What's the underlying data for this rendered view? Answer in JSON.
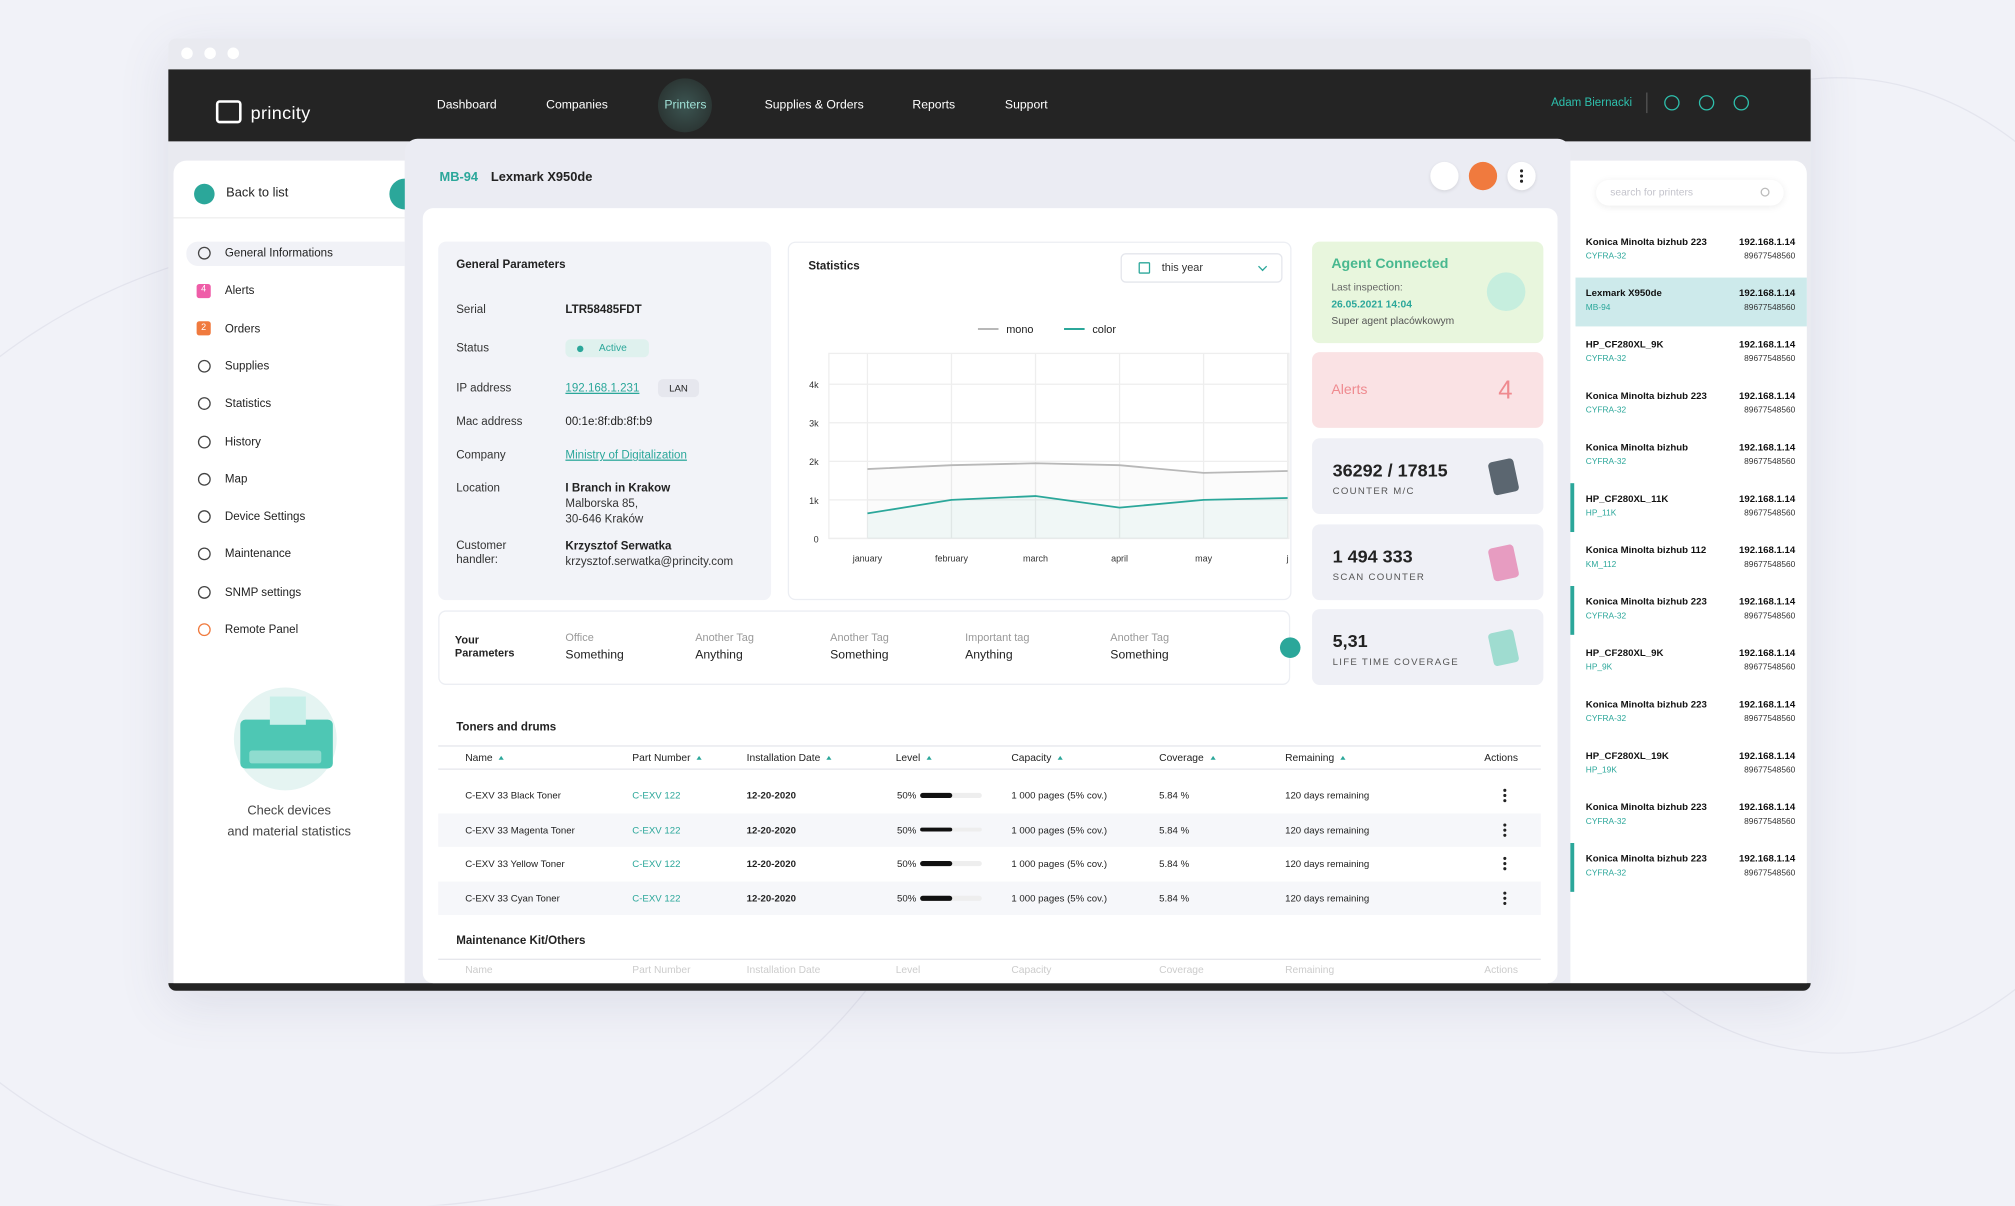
{
  "browser": {
    "brand": "princity",
    "nav": [
      "Dashboard",
      "Companies",
      "Printers",
      "Supplies & Orders",
      "Reports",
      "Support"
    ],
    "user": "Adam Biernacki"
  },
  "sidebar": {
    "back": "Back to list",
    "menu": [
      {
        "label": "General Informations"
      },
      {
        "label": "Alerts",
        "badge": "4"
      },
      {
        "label": "Orders",
        "badge": "2"
      },
      {
        "label": "Supplies"
      },
      {
        "label": "Statistics"
      },
      {
        "label": "History"
      },
      {
        "label": "Map"
      },
      {
        "label": "Device Settings"
      },
      {
        "label": "Maintenance"
      },
      {
        "label": "SNMP settings"
      },
      {
        "label": "Remote Panel"
      }
    ],
    "promo": [
      "Check devices",
      "and material statistics"
    ]
  },
  "device": {
    "id": "MB-94",
    "name": "Lexmark X950de"
  },
  "general_parameters": {
    "title": "General Parameters",
    "rows": [
      {
        "label": "Serial",
        "lines": [
          "LTR58485FDT"
        ]
      },
      {
        "label": "Status",
        "lines": [
          "Active"
        ]
      },
      {
        "label": "IP address",
        "lines": [
          "192.168.1.231"
        ],
        "tag": "LAN"
      },
      {
        "label": "Mac address",
        "lines": [
          "00:1e:8f:db:8f:b9"
        ]
      },
      {
        "label": "Company",
        "lines": [
          "Ministry of Digitalization"
        ]
      },
      {
        "label": "Location",
        "lines": [
          "I Branch in Krakow",
          "Malborska 85,",
          "30-646 Kraków"
        ]
      },
      {
        "label": "Customer handler:",
        "lines": [
          "Krzysztof Serwatka",
          "krzysztof.serwatka@princity.com"
        ]
      }
    ]
  },
  "statistics_filter": "this year",
  "chart_data": {
    "type": "line",
    "title": "Statistics",
    "categories": [
      "january",
      "february",
      "march",
      "april",
      "may",
      "j"
    ],
    "series": [
      {
        "name": "mono",
        "color": "#b8b8b8",
        "values": [
          1800,
          1900,
          1950,
          1900,
          1700,
          1750
        ]
      },
      {
        "name": "color",
        "color": "#2ba79a",
        "values": [
          650,
          1000,
          1100,
          800,
          1000,
          1050
        ]
      }
    ],
    "ylim": [
      0,
      4800
    ],
    "yticks": [
      0,
      {
        "value": 1000,
        "label": "1k"
      },
      {
        "value": 2000,
        "label": "2k"
      },
      {
        "value": 3000,
        "label": "3k"
      },
      {
        "value": 4000,
        "label": "4k"
      }
    ],
    "grid": true,
    "legend": "top"
  },
  "status_cards": {
    "agent": {
      "title": "Agent Connected",
      "label": "Last inspection:",
      "date": "26.05.2021 14:04",
      "name": "Super agent placówkowym"
    },
    "alerts": {
      "label": "Alerts",
      "count": 4
    },
    "counters": [
      {
        "value": "36292 / 17815",
        "label": "COUNTER M/C"
      },
      {
        "value": "1 494 333",
        "label": "SCAN COUNTER"
      },
      {
        "value": "5,31",
        "label": "LIFE TIME COVERAGE"
      }
    ]
  },
  "your_parameters": {
    "title": "Your Parameters",
    "tags": [
      {
        "label": "Office",
        "value": "Something"
      },
      {
        "label": "Another Tag",
        "value": "Anything"
      },
      {
        "label": "Another Tag",
        "value": "Something"
      },
      {
        "label": "Important tag",
        "value": "Anything"
      },
      {
        "label": "Another Tag",
        "value": "Something"
      }
    ]
  },
  "toners": {
    "title": "Toners and drums",
    "columns": [
      "Name",
      "Part Number",
      "Installation Date",
      "Level",
      "Capacity",
      "Coverage",
      "Remaining",
      "Actions"
    ],
    "rows": [
      [
        "C-EXV 33 Black Toner",
        "C-EXV 122",
        "12-20-2020",
        "50%",
        "1 000 pages (5% cov.)",
        "5.84 %",
        "120 days remaining"
      ],
      [
        "C-EXV 33 Magenta Toner",
        "C-EXV 122",
        "12-20-2020",
        "50%",
        "1 000 pages (5% cov.)",
        "5.84 %",
        "120 days remaining"
      ],
      [
        "C-EXV 33 Yellow Toner",
        "C-EXV 122",
        "12-20-2020",
        "50%",
        "1 000 pages (5% cov.)",
        "5.84 %",
        "120 days remaining"
      ],
      [
        "C-EXV 33 Cyan Toner",
        "C-EXV 122",
        "12-20-2020",
        "50%",
        "1 000 pages (5% cov.)",
        "5.84 %",
        "120 days remaining"
      ]
    ]
  },
  "maintenance": {
    "title": "Maintenance Kit/Others",
    "columns": [
      "Name",
      "Part Number",
      "Installation Date",
      "Level",
      "Capacity",
      "Coverage",
      "Remaining",
      "Actions"
    ]
  },
  "printer_list": {
    "search_placeholder": "search for printers",
    "items": [
      {
        "name": "Konica Minolta bizhub 223",
        "group": "CYFRA-32",
        "ip": "192.168.1.14",
        "serial": "89677548560"
      },
      {
        "name": "Lexmark X950de",
        "group": "MB-94",
        "ip": "192.168.1.14",
        "serial": "89677548560"
      },
      {
        "name": "HP_CF280XL_9K",
        "group": "CYFRA-32",
        "ip": "192.168.1.14",
        "serial": "89677548560"
      },
      {
        "name": "Konica Minolta bizhub 223",
        "group": "CYFRA-32",
        "ip": "192.168.1.14",
        "serial": "89677548560"
      },
      {
        "name": "Konica Minolta bizhub",
        "group": "CYFRA-32",
        "ip": "192.168.1.14",
        "serial": "89677548560"
      },
      {
        "name": "HP_CF280XL_11K",
        "group": "HP_11K",
        "ip": "192.168.1.14",
        "serial": "89677548560"
      },
      {
        "name": "Konica Minolta bizhub 112",
        "group": "KM_112",
        "ip": "192.168.1.14",
        "serial": "89677548560"
      },
      {
        "name": "Konica Minolta bizhub 223",
        "group": "CYFRA-32",
        "ip": "192.168.1.14",
        "serial": "89677548560"
      },
      {
        "name": "HP_CF280XL_9K",
        "group": "HP_9K",
        "ip": "192.168.1.14",
        "serial": "89677548560"
      },
      {
        "name": "Konica Minolta bizhub 223",
        "group": "CYFRA-32",
        "ip": "192.168.1.14",
        "serial": "89677548560"
      },
      {
        "name": "HP_CF280XL_19K",
        "group": "HP_19K",
        "ip": "192.168.1.14",
        "serial": "89677548560"
      },
      {
        "name": "Konica Minolta bizhub 223",
        "group": "CYFRA-32",
        "ip": "192.168.1.14",
        "serial": "89677548560"
      },
      {
        "name": "Konica Minolta bizhub 223",
        "group": "CYFRA-32",
        "ip": "192.168.1.14",
        "serial": "89677548560"
      }
    ]
  }
}
